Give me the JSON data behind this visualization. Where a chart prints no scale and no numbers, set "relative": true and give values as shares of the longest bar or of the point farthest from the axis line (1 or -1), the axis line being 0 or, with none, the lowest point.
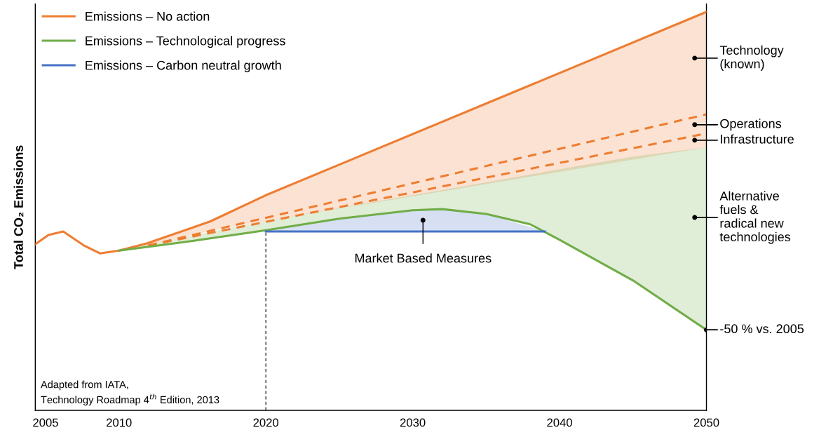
{
  "chart_data": {
    "type": "line",
    "relative": true,
    "ylabel": "Total CO₂ Emissions",
    "xlim": [
      2004.3,
      2050
    ],
    "xticks": [
      2005,
      2010,
      2020,
      2030,
      2040,
      2050
    ],
    "series": [
      {
        "name": "Emissions – No action",
        "color": "#ee7d31",
        "x": [
          2004.3,
          2005.2,
          2006.2,
          2007.6,
          2008.7,
          2010,
          2011.9,
          2016.2,
          2020,
          2050
        ],
        "values": [
          0.417,
          0.44,
          0.449,
          0.414,
          0.394,
          0.401,
          0.419,
          0.474,
          0.54,
          1.0
        ],
        "lower": [
          0.417,
          0.44,
          0.449,
          0.414,
          0.394,
          0.401,
          0.414,
          0.45,
          0.476,
          0.66
        ],
        "upper": [
          0.417,
          0.44,
          0.449,
          0.414,
          0.394,
          0.401,
          0.419,
          0.474,
          0.54,
          1.0
        ]
      },
      {
        "name": "Emissions – Technological progress",
        "color": "#70ad47",
        "x": [
          2010,
          2015,
          2020,
          2025,
          2030,
          2032,
          2035,
          2038,
          2040,
          2045,
          2050
        ],
        "values": [
          0.401,
          0.425,
          0.452,
          0.481,
          0.502,
          0.505,
          0.493,
          0.467,
          0.428,
          0.326,
          0.202
        ],
        "lower": [
          0.401,
          0.425,
          0.452,
          0.481,
          0.502,
          0.505,
          0.493,
          0.467,
          0.428,
          0.326,
          0.202
        ],
        "upper": [
          0.401,
          0.439,
          0.476,
          0.508,
          0.54,
          0.553,
          0.572,
          0.592,
          0.605,
          0.637,
          0.66
        ]
      },
      {
        "name": "Emissions – Carbon neutral growth",
        "color": "#4472c4",
        "x": [
          2020,
          2025,
          2030,
          2032,
          2035,
          2039
        ],
        "values": [
          0.449,
          0.449,
          0.449,
          0.449,
          0.449,
          0.449
        ],
        "lower": [
          0.449,
          0.449,
          0.449,
          0.449,
          0.449,
          0.449
        ],
        "upper": [
          0.452,
          0.481,
          0.502,
          0.505,
          0.493,
          0.449
        ]
      },
      {
        "color": "#ee7d31",
        "line_style": "dashed",
        "x": [
          2012,
          2050
        ],
        "values": [
          0.414,
          0.743
        ]
      },
      {
        "color": "#ee7d31",
        "line_style": "dashed",
        "x": [
          2012,
          2050
        ],
        "values": [
          0.414,
          0.695
        ]
      }
    ],
    "ref_lines": [
      {
        "axis": "x",
        "value": 2020,
        "color": "#000000",
        "line_style": "dashed"
      }
    ],
    "annotations": [
      {
        "text": "Technology\n(known)",
        "x": 2049.2,
        "y": 0.884
      },
      {
        "text": "Operations",
        "x": 2049.2,
        "y": 0.717
      },
      {
        "text": "Infrastructure",
        "x": 2049.2,
        "y": 0.678
      },
      {
        "text": "Alternative\nfuels &\nradical new\ntechnologies",
        "x": 2049.2,
        "y": 0.484
      },
      {
        "text": "-50 % vs. 2005",
        "x": 2050,
        "y": 0.202
      },
      {
        "text": "Market Based Measures",
        "x": 2030.7,
        "y": 0.477
      },
      "Adapted from IATA,\nTechnology Roadmap 4$^{th}$ Edition, 2013"
    ],
    "legend": "top left",
    "grid": false
  }
}
